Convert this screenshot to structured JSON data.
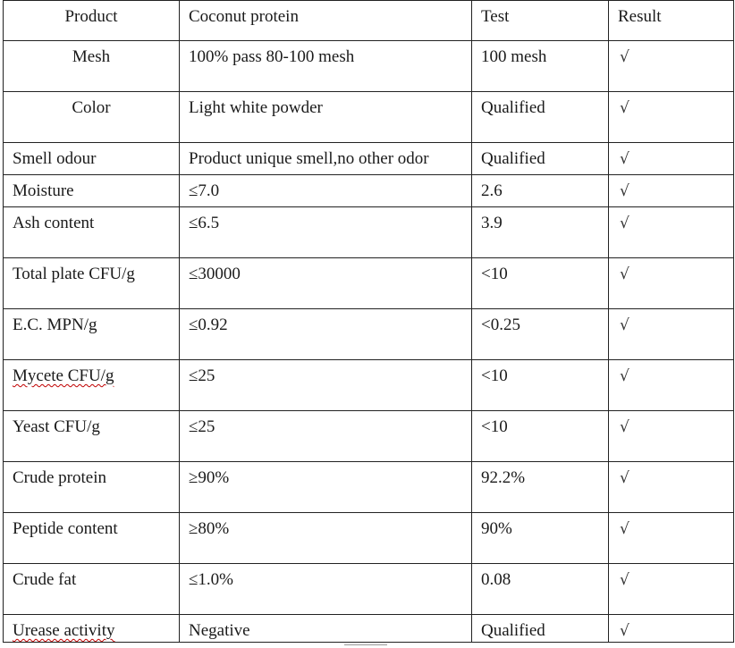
{
  "table": {
    "headers": [
      "Product",
      "Coconut protein",
      "Test",
      "Result"
    ],
    "rows": [
      {
        "item": "Mesh",
        "standard": "100% pass 80-100 mesh",
        "test": "100 mesh",
        "result": "√"
      },
      {
        "item": "Color",
        "standard": "Light white powder",
        "test": "Qualified",
        "result": "√"
      },
      {
        "item": "Smell odour",
        "standard": "Product unique smell,no other odor",
        "test": "Qualified",
        "result": "√"
      },
      {
        "item": "Moisture",
        "standard": "≤7.0",
        "test": "2.6",
        "result": "√"
      },
      {
        "item": "Ash content",
        "standard": "≤6.5",
        "test": "3.9",
        "result": "√"
      },
      {
        "item": "Total plate CFU/g",
        "standard": "≤30000",
        "test": "<10",
        "result": "√"
      },
      {
        "item": "E.C. MPN/g",
        "standard": "≤0.92",
        "test": "<0.25",
        "result": "√"
      },
      {
        "item": "Mycete CFU/g",
        "standard": "≤25",
        "test": "<10",
        "result": "√"
      },
      {
        "item": "Yeast CFU/g",
        "standard": "≤25",
        "test": "<10",
        "result": "√"
      },
      {
        "item": "Crude protein",
        "standard": "≥90%",
        "test": "92.2%",
        "result": "√"
      },
      {
        "item": "Peptide content",
        "standard": "≥80%",
        "test": "90%",
        "result": "√"
      },
      {
        "item": "Crude fat",
        "standard": "≤1.0%",
        "test": "0.08",
        "result": "√"
      },
      {
        "item": "Urease activity",
        "standard": "Negative",
        "test": "Qualified",
        "result": "√"
      }
    ]
  }
}
